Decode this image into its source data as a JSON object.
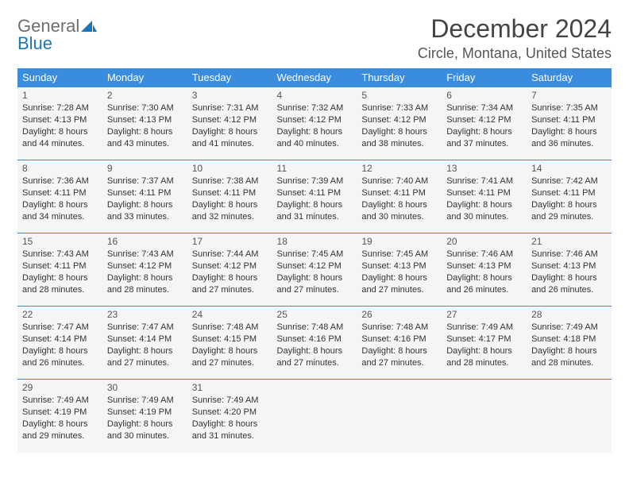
{
  "logo": {
    "text1": "General",
    "text2": "Blue"
  },
  "title": "December 2024",
  "location": "Circle, Montana, United States",
  "colors": {
    "header_bg": "#3a8dde",
    "header_text": "#ffffff",
    "cell_bg": "#f5f5f5",
    "row_border": "#3a8dde",
    "logo_blue": "#1b75bb",
    "logo_gray": "#6e6e6e"
  },
  "weekdays": [
    "Sunday",
    "Monday",
    "Tuesday",
    "Wednesday",
    "Thursday",
    "Friday",
    "Saturday"
  ],
  "weeks": [
    [
      {
        "day": "1",
        "sunrise": "Sunrise: 7:28 AM",
        "sunset": "Sunset: 4:13 PM",
        "daylight": "Daylight: 8 hours and 44 minutes."
      },
      {
        "day": "2",
        "sunrise": "Sunrise: 7:30 AM",
        "sunset": "Sunset: 4:13 PM",
        "daylight": "Daylight: 8 hours and 43 minutes."
      },
      {
        "day": "3",
        "sunrise": "Sunrise: 7:31 AM",
        "sunset": "Sunset: 4:12 PM",
        "daylight": "Daylight: 8 hours and 41 minutes."
      },
      {
        "day": "4",
        "sunrise": "Sunrise: 7:32 AM",
        "sunset": "Sunset: 4:12 PM",
        "daylight": "Daylight: 8 hours and 40 minutes."
      },
      {
        "day": "5",
        "sunrise": "Sunrise: 7:33 AM",
        "sunset": "Sunset: 4:12 PM",
        "daylight": "Daylight: 8 hours and 38 minutes."
      },
      {
        "day": "6",
        "sunrise": "Sunrise: 7:34 AM",
        "sunset": "Sunset: 4:12 PM",
        "daylight": "Daylight: 8 hours and 37 minutes."
      },
      {
        "day": "7",
        "sunrise": "Sunrise: 7:35 AM",
        "sunset": "Sunset: 4:11 PM",
        "daylight": "Daylight: 8 hours and 36 minutes."
      }
    ],
    [
      {
        "day": "8",
        "sunrise": "Sunrise: 7:36 AM",
        "sunset": "Sunset: 4:11 PM",
        "daylight": "Daylight: 8 hours and 34 minutes."
      },
      {
        "day": "9",
        "sunrise": "Sunrise: 7:37 AM",
        "sunset": "Sunset: 4:11 PM",
        "daylight": "Daylight: 8 hours and 33 minutes."
      },
      {
        "day": "10",
        "sunrise": "Sunrise: 7:38 AM",
        "sunset": "Sunset: 4:11 PM",
        "daylight": "Daylight: 8 hours and 32 minutes."
      },
      {
        "day": "11",
        "sunrise": "Sunrise: 7:39 AM",
        "sunset": "Sunset: 4:11 PM",
        "daylight": "Daylight: 8 hours and 31 minutes."
      },
      {
        "day": "12",
        "sunrise": "Sunrise: 7:40 AM",
        "sunset": "Sunset: 4:11 PM",
        "daylight": "Daylight: 8 hours and 30 minutes."
      },
      {
        "day": "13",
        "sunrise": "Sunrise: 7:41 AM",
        "sunset": "Sunset: 4:11 PM",
        "daylight": "Daylight: 8 hours and 30 minutes."
      },
      {
        "day": "14",
        "sunrise": "Sunrise: 7:42 AM",
        "sunset": "Sunset: 4:11 PM",
        "daylight": "Daylight: 8 hours and 29 minutes."
      }
    ],
    [
      {
        "day": "15",
        "sunrise": "Sunrise: 7:43 AM",
        "sunset": "Sunset: 4:11 PM",
        "daylight": "Daylight: 8 hours and 28 minutes."
      },
      {
        "day": "16",
        "sunrise": "Sunrise: 7:43 AM",
        "sunset": "Sunset: 4:12 PM",
        "daylight": "Daylight: 8 hours and 28 minutes."
      },
      {
        "day": "17",
        "sunrise": "Sunrise: 7:44 AM",
        "sunset": "Sunset: 4:12 PM",
        "daylight": "Daylight: 8 hours and 27 minutes."
      },
      {
        "day": "18",
        "sunrise": "Sunrise: 7:45 AM",
        "sunset": "Sunset: 4:12 PM",
        "daylight": "Daylight: 8 hours and 27 minutes."
      },
      {
        "day": "19",
        "sunrise": "Sunrise: 7:45 AM",
        "sunset": "Sunset: 4:13 PM",
        "daylight": "Daylight: 8 hours and 27 minutes."
      },
      {
        "day": "20",
        "sunrise": "Sunrise: 7:46 AM",
        "sunset": "Sunset: 4:13 PM",
        "daylight": "Daylight: 8 hours and 26 minutes."
      },
      {
        "day": "21",
        "sunrise": "Sunrise: 7:46 AM",
        "sunset": "Sunset: 4:13 PM",
        "daylight": "Daylight: 8 hours and 26 minutes."
      }
    ],
    [
      {
        "day": "22",
        "sunrise": "Sunrise: 7:47 AM",
        "sunset": "Sunset: 4:14 PM",
        "daylight": "Daylight: 8 hours and 26 minutes."
      },
      {
        "day": "23",
        "sunrise": "Sunrise: 7:47 AM",
        "sunset": "Sunset: 4:14 PM",
        "daylight": "Daylight: 8 hours and 27 minutes."
      },
      {
        "day": "24",
        "sunrise": "Sunrise: 7:48 AM",
        "sunset": "Sunset: 4:15 PM",
        "daylight": "Daylight: 8 hours and 27 minutes."
      },
      {
        "day": "25",
        "sunrise": "Sunrise: 7:48 AM",
        "sunset": "Sunset: 4:16 PM",
        "daylight": "Daylight: 8 hours and 27 minutes."
      },
      {
        "day": "26",
        "sunrise": "Sunrise: 7:48 AM",
        "sunset": "Sunset: 4:16 PM",
        "daylight": "Daylight: 8 hours and 27 minutes."
      },
      {
        "day": "27",
        "sunrise": "Sunrise: 7:49 AM",
        "sunset": "Sunset: 4:17 PM",
        "daylight": "Daylight: 8 hours and 28 minutes."
      },
      {
        "day": "28",
        "sunrise": "Sunrise: 7:49 AM",
        "sunset": "Sunset: 4:18 PM",
        "daylight": "Daylight: 8 hours and 28 minutes."
      }
    ],
    [
      {
        "day": "29",
        "sunrise": "Sunrise: 7:49 AM",
        "sunset": "Sunset: 4:19 PM",
        "daylight": "Daylight: 8 hours and 29 minutes."
      },
      {
        "day": "30",
        "sunrise": "Sunrise: 7:49 AM",
        "sunset": "Sunset: 4:19 PM",
        "daylight": "Daylight: 8 hours and 30 minutes."
      },
      {
        "day": "31",
        "sunrise": "Sunrise: 7:49 AM",
        "sunset": "Sunset: 4:20 PM",
        "daylight": "Daylight: 8 hours and 31 minutes."
      },
      null,
      null,
      null,
      null
    ]
  ]
}
